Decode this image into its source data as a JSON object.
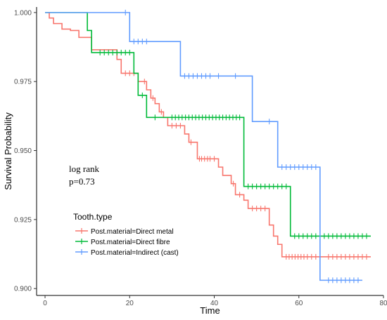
{
  "chart_data": {
    "type": "line",
    "title": "",
    "xlabel": "Time",
    "ylabel": "Survival Probability",
    "xlim": [
      -2,
      80
    ],
    "ylim": [
      0.8975,
      1.002
    ],
    "xticks": [
      0,
      20,
      40,
      60,
      80
    ],
    "yticks": [
      0.9,
      0.925,
      0.95,
      0.975,
      1.0
    ],
    "ytick_labels": [
      "0.900",
      "0.925",
      "0.950",
      "0.975",
      "1.000"
    ],
    "grid": false,
    "annotation": {
      "line1": "log rank",
      "line2": "p=0.73"
    },
    "legend": {
      "title": "Tooth.type",
      "placement": "bottom-left"
    },
    "series": [
      {
        "name": "Post.material=Direct metal",
        "color": "#f8766d",
        "steps": [
          [
            0,
            1.0
          ],
          [
            1,
            0.998
          ],
          [
            2,
            0.996
          ],
          [
            4,
            0.994
          ],
          [
            6,
            0.9935
          ],
          [
            8,
            0.991
          ],
          [
            11,
            0.9865
          ],
          [
            17,
            0.983
          ],
          [
            18,
            0.978
          ],
          [
            22,
            0.975
          ],
          [
            24,
            0.972
          ],
          [
            25,
            0.969
          ],
          [
            26,
            0.967
          ],
          [
            27,
            0.964
          ],
          [
            28,
            0.962
          ],
          [
            29,
            0.959
          ],
          [
            33,
            0.956
          ],
          [
            34,
            0.953
          ],
          [
            36,
            0.947
          ],
          [
            41,
            0.944
          ],
          [
            42,
            0.941
          ],
          [
            44,
            0.938
          ],
          [
            45,
            0.934
          ],
          [
            47,
            0.932
          ],
          [
            48,
            0.929
          ],
          [
            53,
            0.923
          ],
          [
            54,
            0.919
          ],
          [
            55,
            0.916
          ],
          [
            56,
            0.9115
          ],
          [
            77,
            0.9115
          ]
        ],
        "censored": [
          [
            19,
            0.978
          ],
          [
            20,
            0.978
          ],
          [
            21,
            0.978
          ],
          [
            23.5,
            0.975
          ],
          [
            25.5,
            0.969
          ],
          [
            27.5,
            0.964
          ],
          [
            30,
            0.959
          ],
          [
            31,
            0.959
          ],
          [
            32,
            0.959
          ],
          [
            34.5,
            0.953
          ],
          [
            36.5,
            0.947
          ],
          [
            37,
            0.947
          ],
          [
            37.7,
            0.947
          ],
          [
            38.4,
            0.947
          ],
          [
            39,
            0.947
          ],
          [
            40,
            0.947
          ],
          [
            44.5,
            0.938
          ],
          [
            46,
            0.934
          ],
          [
            49,
            0.929
          ],
          [
            50,
            0.929
          ],
          [
            51,
            0.929
          ],
          [
            52,
            0.929
          ],
          [
            57,
            0.9115
          ],
          [
            57.7,
            0.9115
          ],
          [
            58.4,
            0.9115
          ],
          [
            59.1,
            0.9115
          ],
          [
            59.8,
            0.9115
          ],
          [
            60.5,
            0.9115
          ],
          [
            61.2,
            0.9115
          ],
          [
            62,
            0.9115
          ],
          [
            63,
            0.9115
          ],
          [
            64,
            0.9115
          ],
          [
            67,
            0.9115
          ],
          [
            68,
            0.9115
          ],
          [
            69,
            0.9115
          ],
          [
            70,
            0.9115
          ],
          [
            71,
            0.9115
          ],
          [
            72,
            0.9115
          ],
          [
            73,
            0.9115
          ],
          [
            74,
            0.9115
          ],
          [
            75,
            0.9115
          ],
          [
            76,
            0.9115
          ]
        ]
      },
      {
        "name": "Post.material=Direct fibre",
        "color": "#00ba38",
        "steps": [
          [
            0,
            1.0
          ],
          [
            10,
            0.9935
          ],
          [
            11,
            0.9855
          ],
          [
            21,
            0.978
          ],
          [
            22,
            0.97
          ],
          [
            24,
            0.962
          ],
          [
            47,
            0.937
          ],
          [
            58,
            0.919
          ],
          [
            77,
            0.919
          ]
        ],
        "censored": [
          [
            13,
            0.9855
          ],
          [
            14,
            0.9855
          ],
          [
            15,
            0.9855
          ],
          [
            16,
            0.9855
          ],
          [
            17,
            0.9855
          ],
          [
            18,
            0.9855
          ],
          [
            19,
            0.9855
          ],
          [
            20,
            0.9855
          ],
          [
            23,
            0.97
          ],
          [
            26,
            0.962
          ],
          [
            30,
            0.962
          ],
          [
            30.8,
            0.962
          ],
          [
            31.6,
            0.962
          ],
          [
            32.4,
            0.962
          ],
          [
            33.2,
            0.962
          ],
          [
            34,
            0.962
          ],
          [
            34.8,
            0.962
          ],
          [
            35.6,
            0.962
          ],
          [
            36.4,
            0.962
          ],
          [
            37.2,
            0.962
          ],
          [
            38,
            0.962
          ],
          [
            38.8,
            0.962
          ],
          [
            39.6,
            0.962
          ],
          [
            40.4,
            0.962
          ],
          [
            41.2,
            0.962
          ],
          [
            42,
            0.962
          ],
          [
            42.8,
            0.962
          ],
          [
            43.6,
            0.962
          ],
          [
            44.4,
            0.962
          ],
          [
            45.2,
            0.962
          ],
          [
            46,
            0.962
          ],
          [
            48,
            0.937
          ],
          [
            49,
            0.937
          ],
          [
            50,
            0.937
          ],
          [
            51,
            0.937
          ],
          [
            52,
            0.937
          ],
          [
            53,
            0.937
          ],
          [
            54,
            0.937
          ],
          [
            55,
            0.937
          ],
          [
            56,
            0.937
          ],
          [
            57,
            0.937
          ],
          [
            59,
            0.919
          ],
          [
            60,
            0.919
          ],
          [
            61,
            0.919
          ],
          [
            62,
            0.919
          ],
          [
            63,
            0.919
          ],
          [
            64,
            0.919
          ],
          [
            65,
            0.919
          ],
          [
            66,
            0.919
          ],
          [
            67,
            0.919
          ],
          [
            68,
            0.919
          ],
          [
            69,
            0.919
          ],
          [
            70,
            0.919
          ],
          [
            71,
            0.919
          ],
          [
            72,
            0.919
          ],
          [
            73,
            0.919
          ],
          [
            74,
            0.919
          ],
          [
            75,
            0.919
          ],
          [
            76,
            0.919
          ]
        ]
      },
      {
        "name": "Post.material=Indirect (cast)",
        "color": "#619cff",
        "steps": [
          [
            0,
            1.0
          ],
          [
            20,
            0.9895
          ],
          [
            32,
            0.977
          ],
          [
            49,
            0.9605
          ],
          [
            55,
            0.944
          ],
          [
            65,
            0.903
          ],
          [
            75,
            0.903
          ]
        ],
        "censored": [
          [
            19,
            1.0
          ],
          [
            21,
            0.9895
          ],
          [
            22,
            0.9895
          ],
          [
            23,
            0.9895
          ],
          [
            24,
            0.9895
          ],
          [
            33,
            0.977
          ],
          [
            34,
            0.977
          ],
          [
            35,
            0.977
          ],
          [
            36,
            0.977
          ],
          [
            37,
            0.977
          ],
          [
            38,
            0.977
          ],
          [
            39,
            0.977
          ],
          [
            41,
            0.977
          ],
          [
            45,
            0.977
          ],
          [
            53,
            0.9605
          ],
          [
            56,
            0.944
          ],
          [
            57,
            0.944
          ],
          [
            58,
            0.944
          ],
          [
            59,
            0.944
          ],
          [
            60,
            0.944
          ],
          [
            61,
            0.944
          ],
          [
            62,
            0.944
          ],
          [
            63,
            0.944
          ],
          [
            64,
            0.944
          ],
          [
            67,
            0.903
          ],
          [
            68,
            0.903
          ],
          [
            69,
            0.903
          ],
          [
            70,
            0.903
          ],
          [
            71,
            0.903
          ],
          [
            72,
            0.903
          ],
          [
            73,
            0.903
          ],
          [
            74,
            0.903
          ]
        ]
      }
    ]
  }
}
